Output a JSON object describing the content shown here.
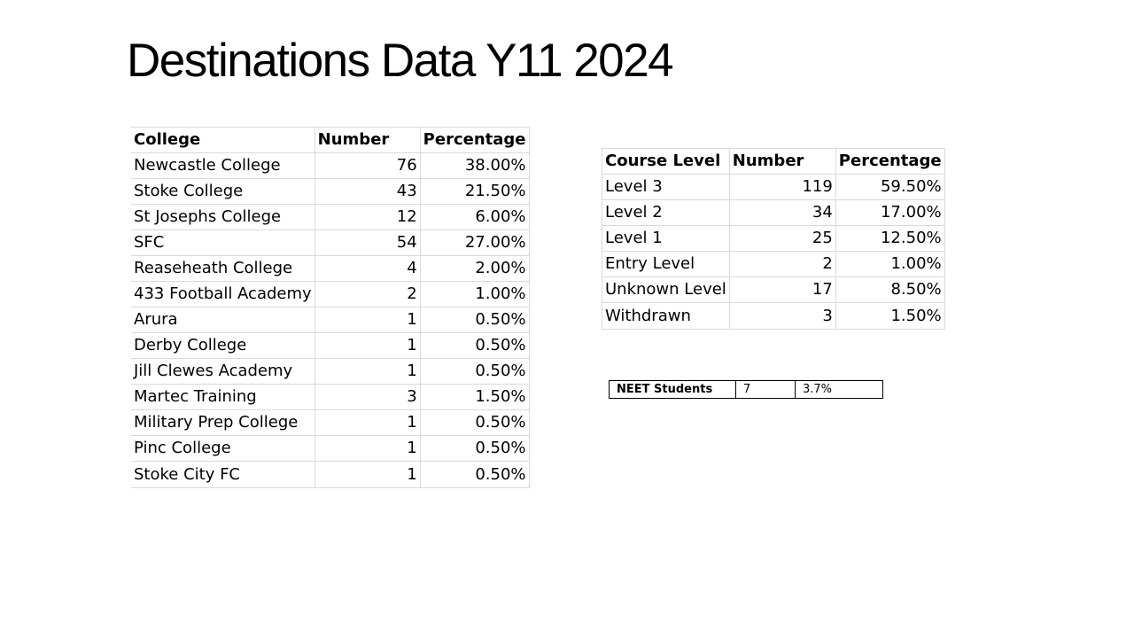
{
  "title": "Destinations Data Y11 2024",
  "college_table": {
    "headers": [
      "College",
      "Number",
      "Percentage"
    ],
    "rows": [
      {
        "name": "Newcastle College",
        "number": "76",
        "percentage": "38.00%"
      },
      {
        "name": "Stoke College",
        "number": "43",
        "percentage": "21.50%"
      },
      {
        "name": "St Josephs College",
        "number": "12",
        "percentage": "6.00%"
      },
      {
        "name": "SFC",
        "number": "54",
        "percentage": "27.00%"
      },
      {
        "name": "Reaseheath College",
        "number": "4",
        "percentage": "2.00%"
      },
      {
        "name": "433 Football Academy",
        "number": "2",
        "percentage": "1.00%"
      },
      {
        "name": "Arura",
        "number": "1",
        "percentage": "0.50%"
      },
      {
        "name": "Derby College",
        "number": "1",
        "percentage": "0.50%"
      },
      {
        "name": "Jill Clewes Academy",
        "number": "1",
        "percentage": "0.50%"
      },
      {
        "name": "Martec Training",
        "number": "3",
        "percentage": "1.50%"
      },
      {
        "name": "Military Prep College",
        "number": "1",
        "percentage": "0.50%"
      },
      {
        "name": "Pinc College",
        "number": "1",
        "percentage": "0.50%"
      },
      {
        "name": "Stoke City FC",
        "number": "1",
        "percentage": "0.50%"
      }
    ]
  },
  "course_table": {
    "headers": [
      "Course Level",
      "Number",
      "Percentage"
    ],
    "rows": [
      {
        "name": "Level 3",
        "number": "119",
        "percentage": "59.50%"
      },
      {
        "name": "Level 2",
        "number": "34",
        "percentage": "17.00%"
      },
      {
        "name": "Level 1",
        "number": "25",
        "percentage": "12.50%"
      },
      {
        "name": "Entry Level",
        "number": "2",
        "percentage": "1.00%"
      },
      {
        "name": "Unknown Level",
        "number": "17",
        "percentage": "8.50%"
      },
      {
        "name": "Withdrawn",
        "number": "3",
        "percentage": "1.50%"
      }
    ]
  },
  "neet": {
    "label": "NEET Students",
    "number": "7",
    "percentage": "3.7%"
  }
}
